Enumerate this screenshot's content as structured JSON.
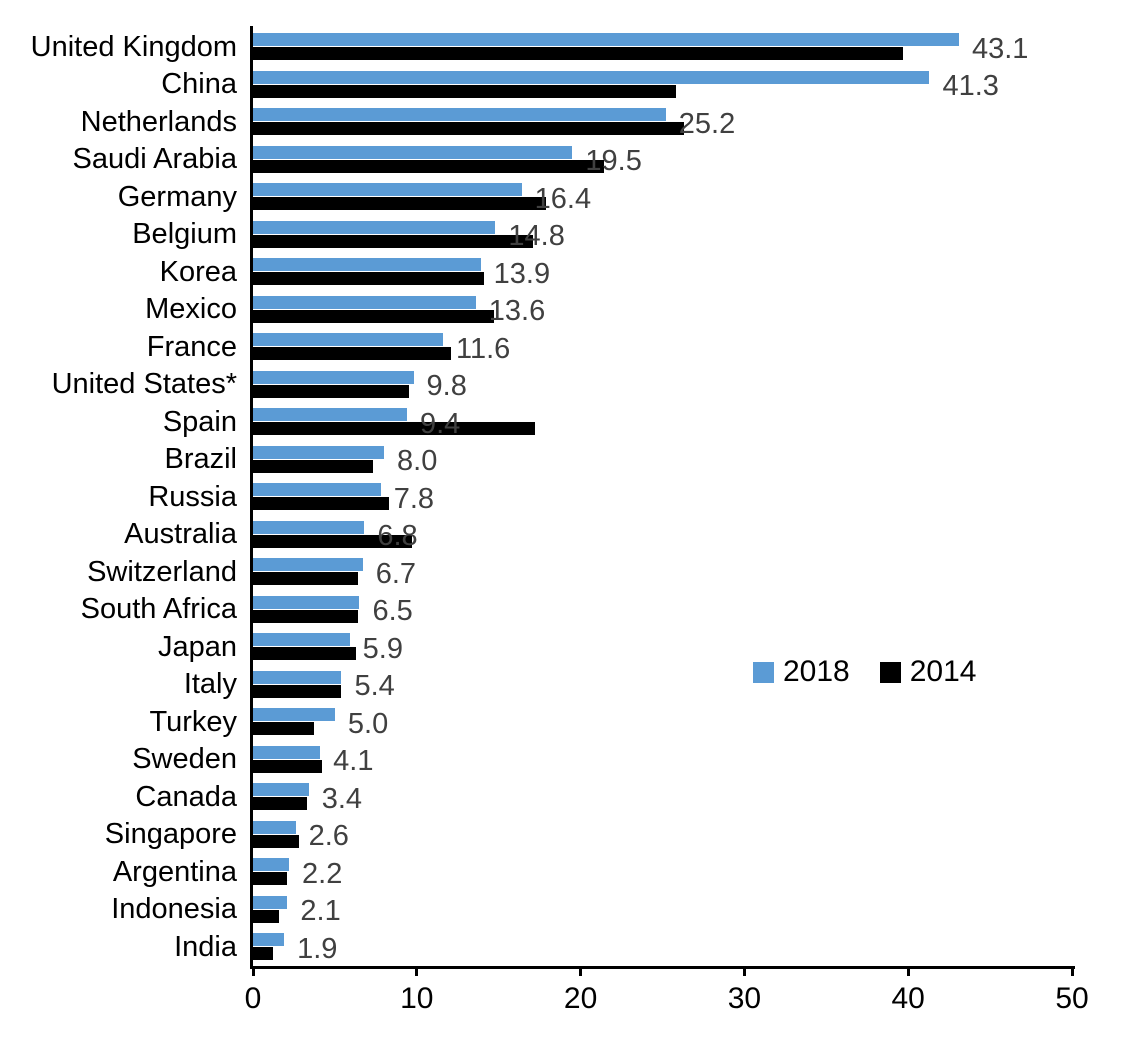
{
  "chart_data": {
    "type": "bar",
    "orientation": "horizontal",
    "title": "",
    "xlabel": "",
    "ylabel": "",
    "xlim": [
      0,
      50
    ],
    "x_ticks": [
      0,
      10,
      20,
      30,
      40,
      50
    ],
    "grid": false,
    "legend_position": "middle-right",
    "value_label_color": "#404040",
    "value_labels_series": "2018",
    "categories": [
      "United Kingdom",
      "China",
      "Netherlands",
      "Saudi Arabia",
      "Germany",
      "Belgium",
      "Korea",
      "Mexico",
      "France",
      "United States*",
      "Spain",
      "Brazil",
      "Russia",
      "Australia",
      "Switzerland",
      "South Africa",
      "Japan",
      "Italy",
      "Turkey",
      "Sweden",
      "Canada",
      "Singapore",
      "Argentina",
      "Indonesia",
      "India"
    ],
    "series": [
      {
        "name": "2018",
        "color": "#5B9BD5",
        "values": [
          43.1,
          41.3,
          25.2,
          19.5,
          16.4,
          14.8,
          13.9,
          13.6,
          11.6,
          9.8,
          9.4,
          8.0,
          7.8,
          6.8,
          6.7,
          6.5,
          5.9,
          5.4,
          5.0,
          4.1,
          3.4,
          2.6,
          2.2,
          2.1,
          1.9
        ]
      },
      {
        "name": "2014",
        "color": "#000000",
        "values": [
          39.7,
          25.8,
          26.3,
          21.4,
          17.9,
          17.1,
          14.1,
          14.7,
          12.1,
          9.5,
          17.2,
          7.3,
          8.3,
          9.7,
          6.4,
          6.4,
          6.3,
          5.4,
          3.7,
          4.2,
          3.3,
          2.8,
          2.1,
          1.6,
          1.2
        ]
      }
    ]
  }
}
